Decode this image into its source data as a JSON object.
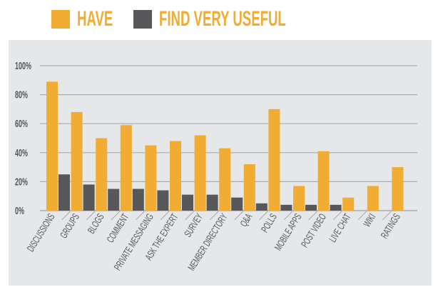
{
  "legend": [
    {
      "label": "HAVE",
      "color": "#f0ac33"
    },
    {
      "label": "FIND VERY USEFUL",
      "color": "#58585a"
    }
  ],
  "chart_data": {
    "type": "bar",
    "categories": [
      "DISCUSSIONS",
      "GROUPS",
      "BLOGS",
      "COMMENT",
      "PRIVATE MESSAGING",
      "ASK THE EXPERT",
      "SURVEY",
      "MEMBER DIRECTORY",
      "Q&A",
      "POLLS",
      "MOBILE APPS",
      "POST VIDEO",
      "LIVE CHAT",
      "WIKI",
      "RATINGS"
    ],
    "series": [
      {
        "name": "HAVE",
        "color": "#f0ac33",
        "values": [
          89,
          68,
          50,
          59,
          45,
          48,
          52,
          43,
          32,
          70,
          17,
          41,
          9,
          17,
          30
        ]
      },
      {
        "name": "FIND VERY USEFUL",
        "color": "#58585a",
        "values": [
          25,
          18,
          15,
          15,
          14,
          11,
          11,
          9,
          5,
          4,
          4,
          4,
          0,
          0,
          0
        ]
      }
    ],
    "yticks": [
      "0%",
      "20%",
      "40%",
      "60%",
      "80%",
      "100%"
    ],
    "ylim": [
      0,
      100
    ],
    "grid": true,
    "legend_position": "top"
  }
}
